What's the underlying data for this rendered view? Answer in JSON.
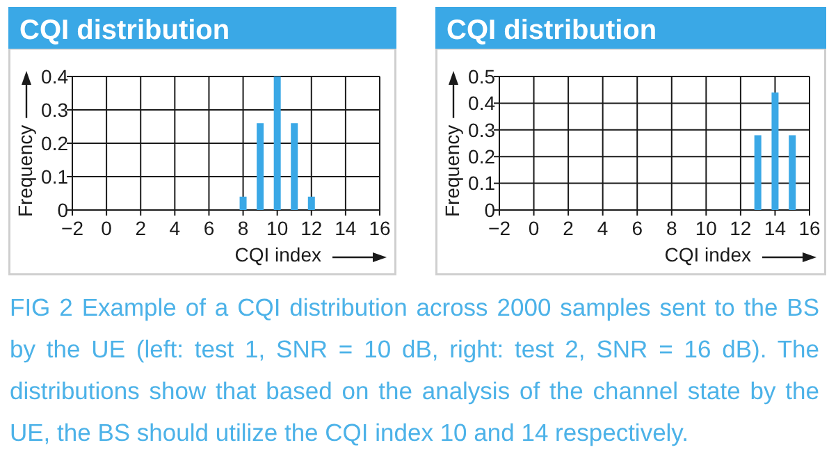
{
  "chart_data": [
    {
      "type": "bar",
      "title": "CQI distribution",
      "xlabel": "CQI index",
      "ylabel": "Frequency",
      "x": [
        8,
        9,
        10,
        11,
        12
      ],
      "values": [
        0.04,
        0.26,
        0.4,
        0.26,
        0.04
      ],
      "color": "#3aa8e6",
      "xlim": [
        -2,
        16
      ],
      "xticks": [
        {
          "value": -2,
          "label": "−2"
        },
        0,
        2,
        4,
        6,
        8,
        10,
        12,
        14,
        16
      ],
      "ylim": [
        0,
        0.4
      ],
      "yticks": [
        0,
        0.1,
        0.2,
        0.3,
        0.4
      ],
      "grid": true,
      "annotations": [
        "FIG 2 Example of a CQI distribution across 2000 samples sent to the BS by the UE (left: test 1, SNR = 10 dB, right: test 2, SNR = 16 dB). The distributions show that based on the analysis of the channel state by the UE, the BS should utilize the CQI index 10 and 14 respectively."
      ]
    },
    {
      "type": "bar",
      "title": "CQI distribution",
      "xlabel": "CQI index",
      "ylabel": "Frequency",
      "x": [
        13,
        14,
        15
      ],
      "values": [
        0.28,
        0.44,
        0.28
      ],
      "color": "#3aa8e6",
      "xlim": [
        -2,
        16
      ],
      "xticks": [
        {
          "value": -2,
          "label": "−2"
        },
        0,
        2,
        4,
        6,
        8,
        10,
        12,
        14,
        16
      ],
      "ylim": [
        0,
        0.5
      ],
      "yticks": [
        0,
        0.1,
        0.2,
        0.3,
        0.4,
        0.5
      ],
      "grid": true
    }
  ]
}
